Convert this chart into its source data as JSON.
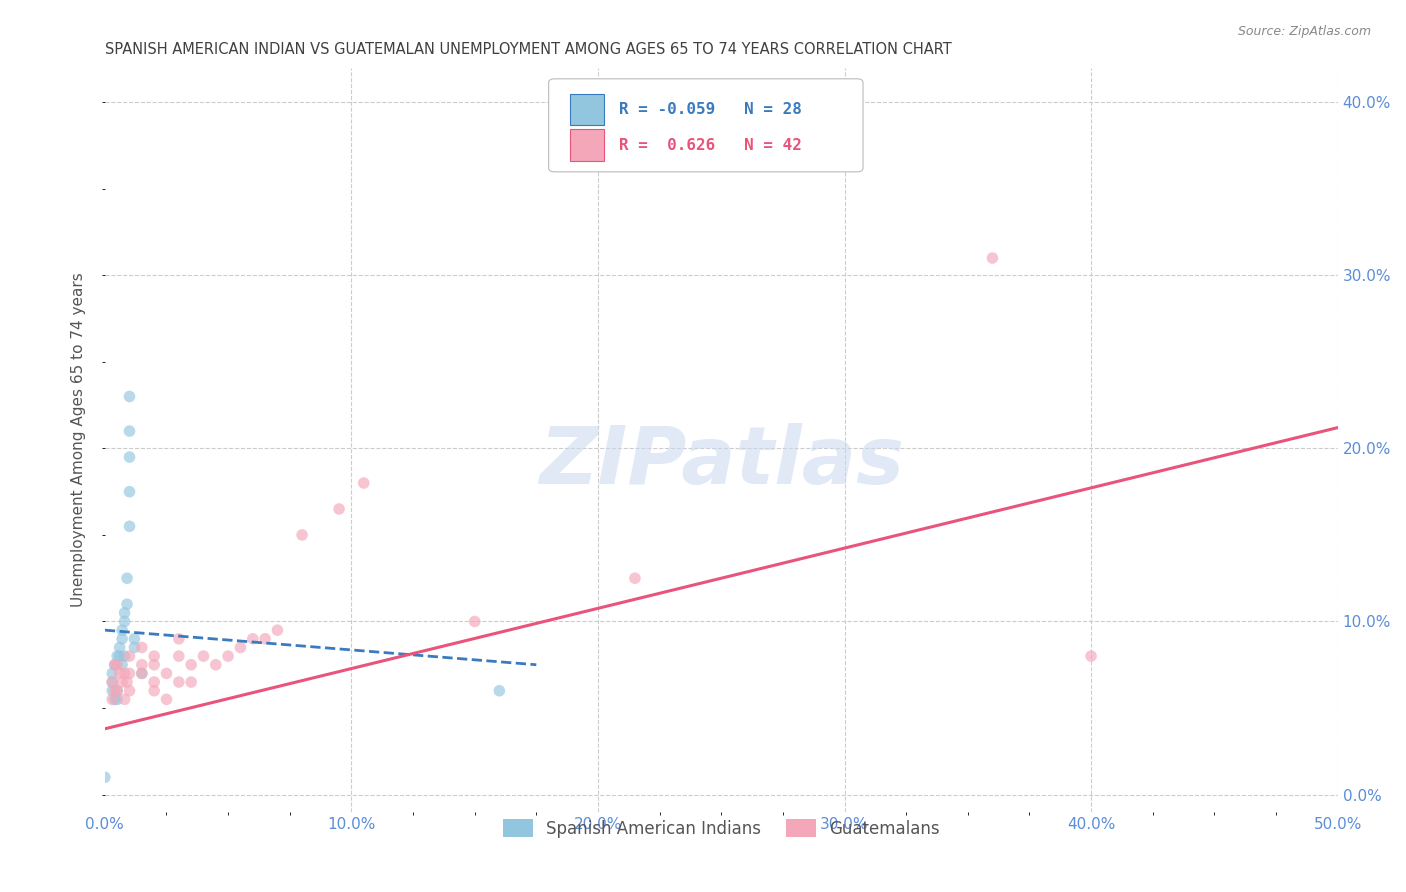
{
  "title": "SPANISH AMERICAN INDIAN VS GUATEMALAN UNEMPLOYMENT AMONG AGES 65 TO 74 YEARS CORRELATION CHART",
  "source": "Source: ZipAtlas.com",
  "ylabel": "Unemployment Among Ages 65 to 74 years",
  "xlim": [
    0.0,
    0.5
  ],
  "ylim": [
    -0.01,
    0.42
  ],
  "background_color": "#ffffff",
  "legend_r1": "R = -0.059",
  "legend_n1": "N = 28",
  "legend_r2": "R =  0.626",
  "legend_n2": "N = 42",
  "blue_color": "#92c5de",
  "pink_color": "#f4a7b9",
  "blue_line_color": "#3a7bbf",
  "pink_line_color": "#e8547a",
  "axis_label_color": "#5b8dd9",
  "grid_color": "#cccccc",
  "title_color": "#404040",
  "blue_scatter_x": [
    0.003,
    0.003,
    0.003,
    0.004,
    0.004,
    0.005,
    0.005,
    0.005,
    0.006,
    0.006,
    0.007,
    0.007,
    0.007,
    0.008,
    0.008,
    0.008,
    0.009,
    0.009,
    0.01,
    0.01,
    0.01,
    0.01,
    0.01,
    0.012,
    0.012,
    0.015,
    0.0,
    0.16
  ],
  "blue_scatter_y": [
    0.06,
    0.065,
    0.07,
    0.055,
    0.075,
    0.055,
    0.06,
    0.08,
    0.08,
    0.085,
    0.075,
    0.09,
    0.095,
    0.08,
    0.1,
    0.105,
    0.11,
    0.125,
    0.155,
    0.175,
    0.195,
    0.21,
    0.23,
    0.085,
    0.09,
    0.07,
    0.01,
    0.06
  ],
  "pink_scatter_x": [
    0.003,
    0.003,
    0.004,
    0.004,
    0.005,
    0.005,
    0.006,
    0.007,
    0.008,
    0.008,
    0.009,
    0.01,
    0.01,
    0.01,
    0.015,
    0.015,
    0.015,
    0.02,
    0.02,
    0.02,
    0.02,
    0.025,
    0.025,
    0.03,
    0.03,
    0.03,
    0.035,
    0.035,
    0.04,
    0.045,
    0.05,
    0.055,
    0.06,
    0.065,
    0.07,
    0.08,
    0.095,
    0.105,
    0.15,
    0.215,
    0.36,
    0.4
  ],
  "pink_scatter_y": [
    0.055,
    0.065,
    0.06,
    0.075,
    0.06,
    0.075,
    0.07,
    0.065,
    0.055,
    0.07,
    0.065,
    0.06,
    0.07,
    0.08,
    0.07,
    0.075,
    0.085,
    0.06,
    0.065,
    0.075,
    0.08,
    0.055,
    0.07,
    0.065,
    0.08,
    0.09,
    0.065,
    0.075,
    0.08,
    0.075,
    0.08,
    0.085,
    0.09,
    0.09,
    0.095,
    0.15,
    0.165,
    0.18,
    0.1,
    0.125,
    0.31,
    0.08
  ],
  "blue_trend_x": [
    0.0,
    0.175
  ],
  "blue_trend_y": [
    0.095,
    0.075
  ],
  "pink_trend_x": [
    0.0,
    0.5
  ],
  "pink_trend_y": [
    0.038,
    0.212
  ],
  "scatter_size": 70,
  "scatter_alpha": 0.65
}
